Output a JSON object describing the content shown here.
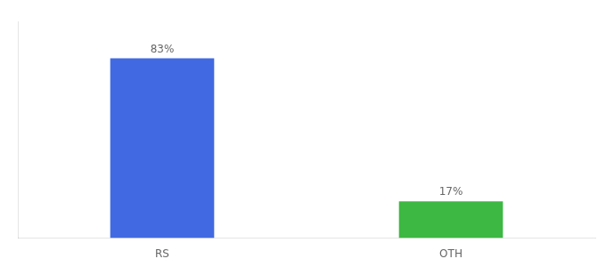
{
  "chart_data": {
    "type": "bar",
    "categories": [
      "RS",
      "OTH"
    ],
    "values": [
      83,
      17
    ],
    "value_labels": [
      "83%",
      "17%"
    ],
    "colors": [
      "#4169e1",
      "#3cb843"
    ],
    "ylim": [
      0,
      100
    ],
    "grid": false,
    "data_labels": true,
    "tick_labels": "x"
  }
}
